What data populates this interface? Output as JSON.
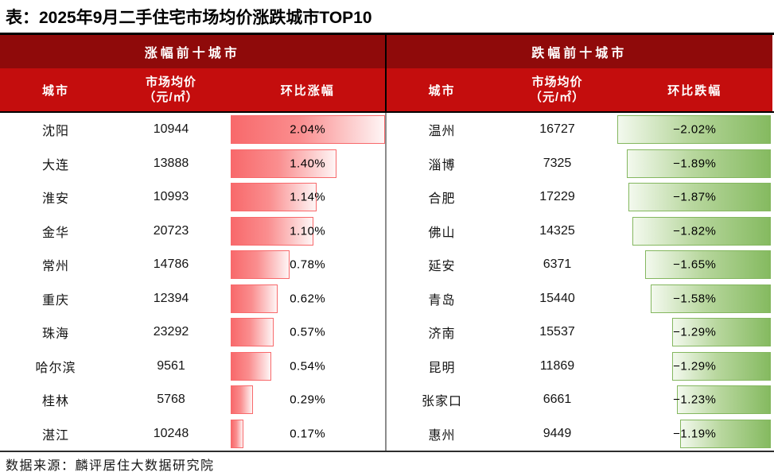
{
  "title": "表：2025年9月二手住宅市场均价涨跌城市TOP10",
  "source": "数据来源：麟评居住大数据研究院",
  "colors": {
    "section_band_red": "#8F0A0A",
    "header_band_red": "#C40D0D",
    "header_text": "#FFFFFF",
    "up_bar_start": "#F8696B",
    "up_bar_end": "#FEF5F5",
    "up_bar_border": "#F8696B",
    "down_bar_start": "#F3F9EE",
    "down_bar_end": "#85BA60",
    "down_bar_border": "#84B75F",
    "divider_header": "#000000",
    "divider_body": "#8C8C8C",
    "body_text": "#141414"
  },
  "left_table": {
    "section_title": "涨幅前十城市",
    "columns": {
      "city": "城市",
      "price_line1": "市场均价",
      "price_line2": "（元/㎡）",
      "change": "环比涨幅"
    },
    "rows": [
      {
        "city": "沈阳",
        "price": "10944",
        "change_label": "2.04%",
        "value": 2.04
      },
      {
        "city": "大连",
        "price": "13888",
        "change_label": "1.40%",
        "value": 1.4
      },
      {
        "city": "淮安",
        "price": "10993",
        "change_label": "1.14%",
        "value": 1.14
      },
      {
        "city": "金华",
        "price": "20723",
        "change_label": "1.10%",
        "value": 1.1
      },
      {
        "city": "常州",
        "price": "14786",
        "change_label": "0.78%",
        "value": 0.78
      },
      {
        "city": "重庆",
        "price": "12394",
        "change_label": "0.62%",
        "value": 0.62
      },
      {
        "city": "珠海",
        "price": "23292",
        "change_label": "0.57%",
        "value": 0.57
      },
      {
        "city": "哈尔滨",
        "price": "9561",
        "change_label": "0.54%",
        "value": 0.54
      },
      {
        "city": "桂林",
        "price": "5768",
        "change_label": "0.29%",
        "value": 0.29
      },
      {
        "city": "湛江",
        "price": "10248",
        "change_label": "0.17%",
        "value": 0.17
      }
    ]
  },
  "right_table": {
    "section_title": "跌幅前十城市",
    "columns": {
      "city": "城市",
      "price_line1": "市场均价",
      "price_line2": "（元/㎡）",
      "change": "环比跌幅"
    },
    "rows": [
      {
        "city": "温州",
        "price": "16727",
        "change_label": "−2.02%",
        "value": -2.02
      },
      {
        "city": "淄博",
        "price": "7325",
        "change_label": "−1.89%",
        "value": -1.89
      },
      {
        "city": "合肥",
        "price": "17229",
        "change_label": "−1.87%",
        "value": -1.87
      },
      {
        "city": "佛山",
        "price": "14325",
        "change_label": "−1.82%",
        "value": -1.82
      },
      {
        "city": "延安",
        "price": "6371",
        "change_label": "−1.65%",
        "value": -1.65
      },
      {
        "city": "青岛",
        "price": "15440",
        "change_label": "−1.58%",
        "value": -1.58
      },
      {
        "city": "济南",
        "price": "15537",
        "change_label": "−1.29%",
        "value": -1.29
      },
      {
        "city": "昆明",
        "price": "11869",
        "change_label": "−1.29%",
        "value": -1.29
      },
      {
        "city": "张家口",
        "price": "6661",
        "change_label": "−1.23%",
        "value": -1.23
      },
      {
        "city": "惠州",
        "price": "9449",
        "change_label": "−1.19%",
        "value": -1.19
      }
    ]
  },
  "chart_data": [
    {
      "type": "bar",
      "title": "涨幅前十城市",
      "categories": [
        "沈阳",
        "大连",
        "淮安",
        "金华",
        "常州",
        "重庆",
        "珠海",
        "哈尔滨",
        "桂林",
        "湛江"
      ],
      "series": [
        {
          "name": "市场均价（元/㎡）",
          "values": [
            10944,
            13888,
            10993,
            20723,
            14786,
            12394,
            23292,
            9561,
            5768,
            10248
          ]
        },
        {
          "name": "环比涨幅(%)",
          "values": [
            2.04,
            1.4,
            1.14,
            1.1,
            0.78,
            0.62,
            0.57,
            0.54,
            0.29,
            0.17
          ]
        }
      ],
      "xlabel": "环比涨幅",
      "ylabel": "城市",
      "xlim": [
        0,
        2.04
      ],
      "legend_position": "none",
      "grid": false
    },
    {
      "type": "bar",
      "title": "跌幅前十城市",
      "categories": [
        "温州",
        "淄博",
        "合肥",
        "佛山",
        "延安",
        "青岛",
        "济南",
        "昆明",
        "张家口",
        "惠州"
      ],
      "series": [
        {
          "name": "市场均价（元/㎡）",
          "values": [
            16727,
            7325,
            17229,
            14325,
            6371,
            15440,
            15537,
            11869,
            6661,
            9449
          ]
        },
        {
          "name": "环比跌幅(%)",
          "values": [
            -2.02,
            -1.89,
            -1.87,
            -1.82,
            -1.65,
            -1.58,
            -1.29,
            -1.29,
            -1.23,
            -1.19
          ]
        }
      ],
      "xlabel": "环比跌幅",
      "ylabel": "城市",
      "xlim": [
        -2.02,
        0
      ],
      "legend_position": "none",
      "grid": false
    }
  ]
}
